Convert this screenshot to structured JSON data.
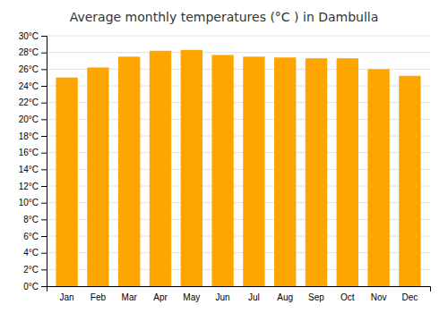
{
  "chart_data": {
    "type": "bar",
    "title": "Average monthly temperatures (°C ) in Dambulla",
    "categories": [
      "Jan",
      "Feb",
      "Mar",
      "Apr",
      "May",
      "Jun",
      "Jul",
      "Aug",
      "Sep",
      "Oct",
      "Nov",
      "Dec"
    ],
    "values": [
      25.0,
      26.2,
      27.5,
      28.2,
      28.3,
      27.7,
      27.5,
      27.4,
      27.3,
      27.3,
      26.0,
      25.2
    ],
    "color": "#FFA500",
    "ylim": [
      0,
      30
    ],
    "yticks": [
      {
        "value": 0,
        "label": "0°C"
      },
      {
        "value": 2,
        "label": "2°C"
      },
      {
        "value": 4,
        "label": "4°C"
      },
      {
        "value": 6,
        "label": "6°C"
      },
      {
        "value": 8,
        "label": "8°C"
      },
      {
        "value": 10,
        "label": "10°C"
      },
      {
        "value": 12,
        "label": "12°C"
      },
      {
        "value": 14,
        "label": "14°C"
      },
      {
        "value": 16,
        "label": "16°C"
      },
      {
        "value": 18,
        "label": "18°C"
      },
      {
        "value": 20,
        "label": "20°C"
      },
      {
        "value": 22,
        "label": "22°C"
      },
      {
        "value": 24,
        "label": "24°C"
      },
      {
        "value": 26,
        "label": "26°C"
      },
      {
        "value": 28,
        "label": "28°C"
      },
      {
        "value": 30,
        "label": "30°C"
      }
    ],
    "grid": true
  }
}
